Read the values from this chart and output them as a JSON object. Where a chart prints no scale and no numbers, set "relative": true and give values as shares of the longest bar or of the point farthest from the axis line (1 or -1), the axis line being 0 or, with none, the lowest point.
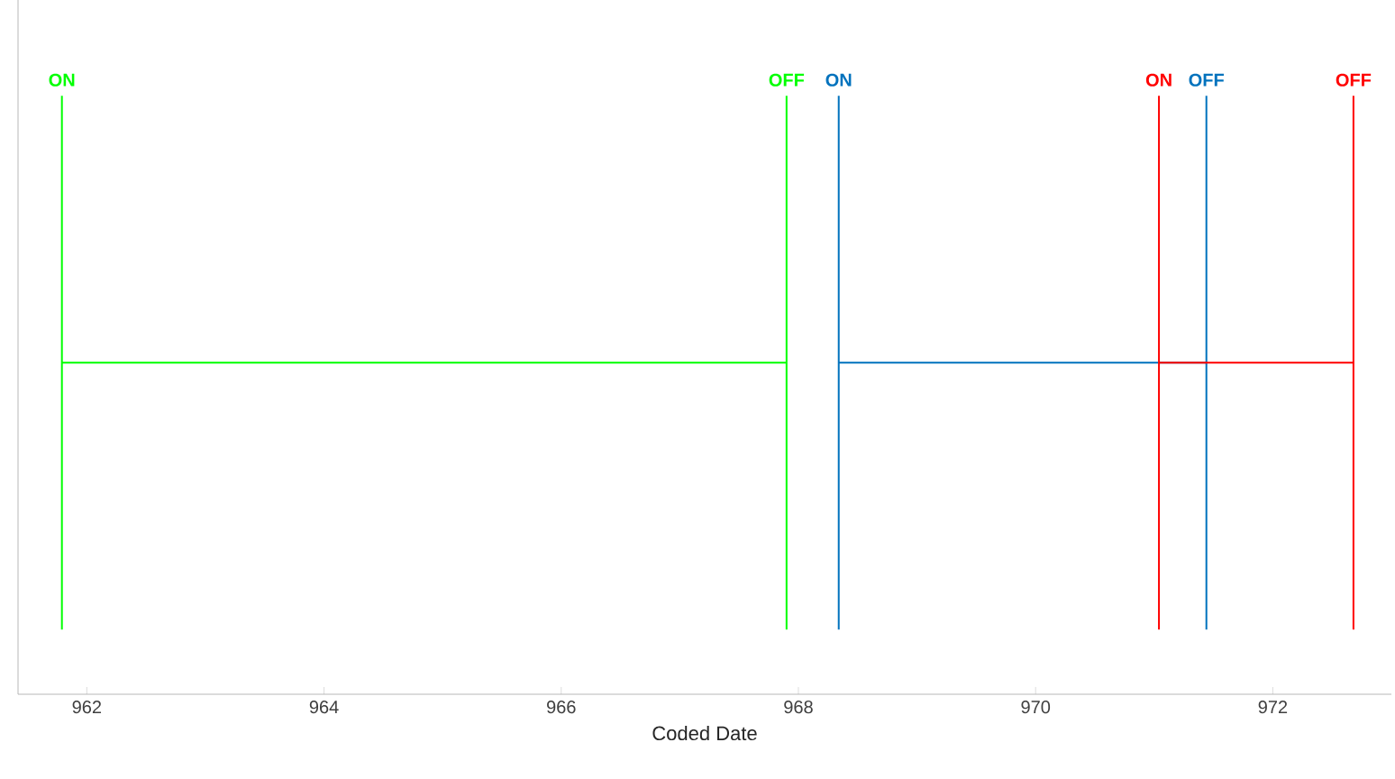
{
  "chart_data": {
    "type": "line",
    "xlabel": "Coded Date",
    "relative": true,
    "xlim": [
      961.42,
      973
    ],
    "xticks": [
      962,
      964,
      966,
      968,
      970,
      972
    ],
    "tick_labels": "x",
    "series": [
      {
        "color": "#00ff00",
        "x": [
          961.79,
          961.79,
          null,
          961.79,
          967.9,
          null,
          967.9,
          967.9
        ],
        "values": [
          0.108,
          1,
          null,
          0.554,
          0.554,
          null,
          0.108,
          1
        ]
      },
      {
        "color": "#0072bd",
        "x": [
          968.34,
          968.34,
          null,
          968.34,
          971.44,
          null,
          971.44,
          971.44
        ],
        "values": [
          0.108,
          1,
          null,
          0.554,
          0.554,
          null,
          0.108,
          1
        ]
      },
      {
        "color": "#ff0000",
        "x": [
          971.04,
          971.04,
          null,
          971.04,
          972.68,
          null,
          972.68,
          972.68
        ],
        "values": [
          0.108,
          1,
          null,
          0.554,
          0.554,
          null,
          0.108,
          1
        ]
      }
    ],
    "annotations": [
      {
        "text": "ON",
        "x": 961.79,
        "y": 1
      },
      {
        "text": "OFF",
        "x": 967.9,
        "y": 1
      },
      {
        "text": "ON",
        "x": 968.34,
        "y": 1
      },
      {
        "text": "ON",
        "x": 971.04,
        "y": 1
      },
      {
        "text": "OFF",
        "x": 971.44,
        "y": 1
      },
      {
        "text": "OFF",
        "x": 972.68,
        "y": 1
      }
    ]
  }
}
